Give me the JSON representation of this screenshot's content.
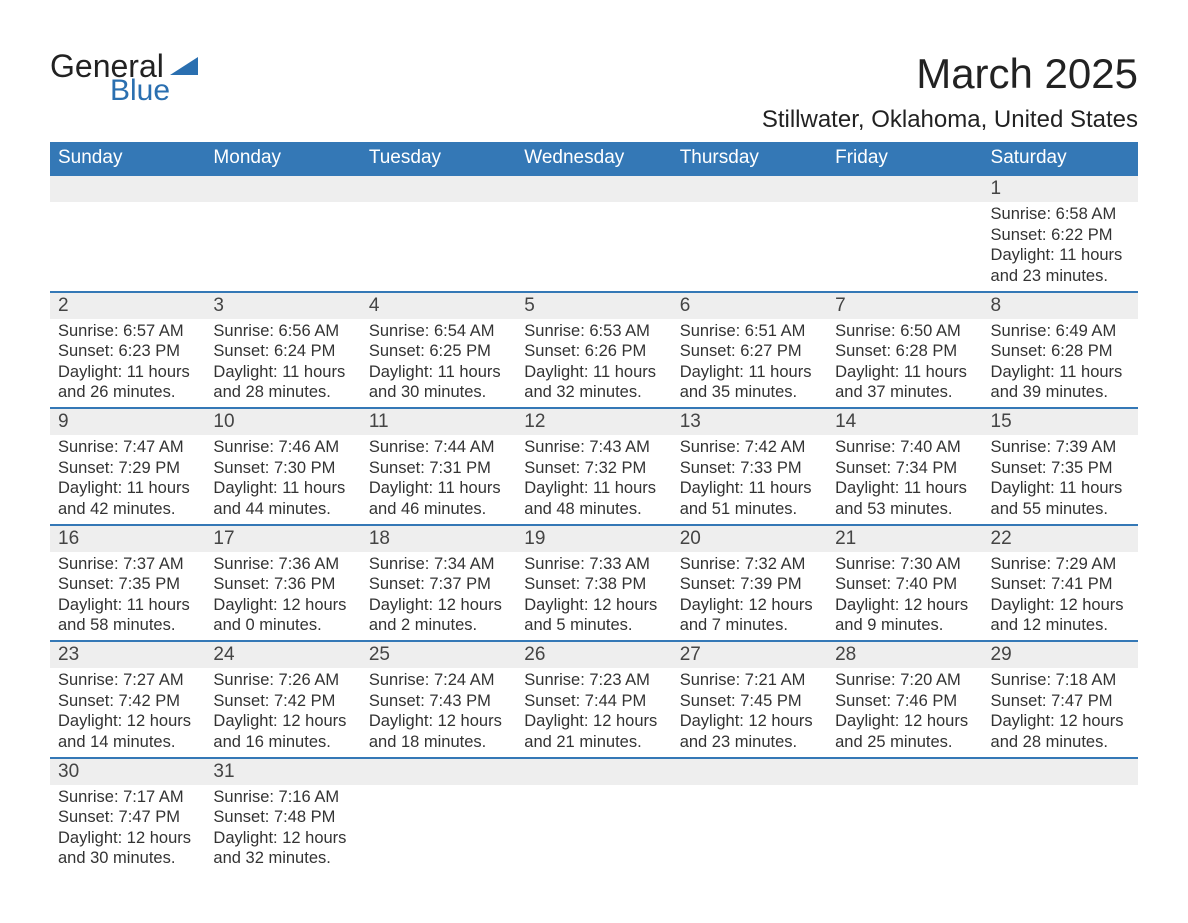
{
  "logo": {
    "line1": "General",
    "line2": "Blue"
  },
  "title": "March 2025",
  "location": "Stillwater, Oklahoma, United States",
  "colors": {
    "primary": "#3478b6",
    "row_shade": "#eeeeee",
    "text": "#333333",
    "background": "#ffffff"
  },
  "typography": {
    "title_fontsize": 42,
    "location_fontsize": 24,
    "dayhead_fontsize": 19,
    "body_fontsize": 16.5,
    "font_family": "Arial"
  },
  "day_headers": [
    "Sunday",
    "Monday",
    "Tuesday",
    "Wednesday",
    "Thursday",
    "Friday",
    "Saturday"
  ],
  "weeks": [
    [
      null,
      null,
      null,
      null,
      null,
      null,
      {
        "n": "1",
        "sr": "Sunrise: 6:58 AM",
        "ss": "Sunset: 6:22 PM",
        "d1": "Daylight: 11 hours",
        "d2": "and 23 minutes."
      }
    ],
    [
      {
        "n": "2",
        "sr": "Sunrise: 6:57 AM",
        "ss": "Sunset: 6:23 PM",
        "d1": "Daylight: 11 hours",
        "d2": "and 26 minutes."
      },
      {
        "n": "3",
        "sr": "Sunrise: 6:56 AM",
        "ss": "Sunset: 6:24 PM",
        "d1": "Daylight: 11 hours",
        "d2": "and 28 minutes."
      },
      {
        "n": "4",
        "sr": "Sunrise: 6:54 AM",
        "ss": "Sunset: 6:25 PM",
        "d1": "Daylight: 11 hours",
        "d2": "and 30 minutes."
      },
      {
        "n": "5",
        "sr": "Sunrise: 6:53 AM",
        "ss": "Sunset: 6:26 PM",
        "d1": "Daylight: 11 hours",
        "d2": "and 32 minutes."
      },
      {
        "n": "6",
        "sr": "Sunrise: 6:51 AM",
        "ss": "Sunset: 6:27 PM",
        "d1": "Daylight: 11 hours",
        "d2": "and 35 minutes."
      },
      {
        "n": "7",
        "sr": "Sunrise: 6:50 AM",
        "ss": "Sunset: 6:28 PM",
        "d1": "Daylight: 11 hours",
        "d2": "and 37 minutes."
      },
      {
        "n": "8",
        "sr": "Sunrise: 6:49 AM",
        "ss": "Sunset: 6:28 PM",
        "d1": "Daylight: 11 hours",
        "d2": "and 39 minutes."
      }
    ],
    [
      {
        "n": "9",
        "sr": "Sunrise: 7:47 AM",
        "ss": "Sunset: 7:29 PM",
        "d1": "Daylight: 11 hours",
        "d2": "and 42 minutes."
      },
      {
        "n": "10",
        "sr": "Sunrise: 7:46 AM",
        "ss": "Sunset: 7:30 PM",
        "d1": "Daylight: 11 hours",
        "d2": "and 44 minutes."
      },
      {
        "n": "11",
        "sr": "Sunrise: 7:44 AM",
        "ss": "Sunset: 7:31 PM",
        "d1": "Daylight: 11 hours",
        "d2": "and 46 minutes."
      },
      {
        "n": "12",
        "sr": "Sunrise: 7:43 AM",
        "ss": "Sunset: 7:32 PM",
        "d1": "Daylight: 11 hours",
        "d2": "and 48 minutes."
      },
      {
        "n": "13",
        "sr": "Sunrise: 7:42 AM",
        "ss": "Sunset: 7:33 PM",
        "d1": "Daylight: 11 hours",
        "d2": "and 51 minutes."
      },
      {
        "n": "14",
        "sr": "Sunrise: 7:40 AM",
        "ss": "Sunset: 7:34 PM",
        "d1": "Daylight: 11 hours",
        "d2": "and 53 minutes."
      },
      {
        "n": "15",
        "sr": "Sunrise: 7:39 AM",
        "ss": "Sunset: 7:35 PM",
        "d1": "Daylight: 11 hours",
        "d2": "and 55 minutes."
      }
    ],
    [
      {
        "n": "16",
        "sr": "Sunrise: 7:37 AM",
        "ss": "Sunset: 7:35 PM",
        "d1": "Daylight: 11 hours",
        "d2": "and 58 minutes."
      },
      {
        "n": "17",
        "sr": "Sunrise: 7:36 AM",
        "ss": "Sunset: 7:36 PM",
        "d1": "Daylight: 12 hours",
        "d2": "and 0 minutes."
      },
      {
        "n": "18",
        "sr": "Sunrise: 7:34 AM",
        "ss": "Sunset: 7:37 PM",
        "d1": "Daylight: 12 hours",
        "d2": "and 2 minutes."
      },
      {
        "n": "19",
        "sr": "Sunrise: 7:33 AM",
        "ss": "Sunset: 7:38 PM",
        "d1": "Daylight: 12 hours",
        "d2": "and 5 minutes."
      },
      {
        "n": "20",
        "sr": "Sunrise: 7:32 AM",
        "ss": "Sunset: 7:39 PM",
        "d1": "Daylight: 12 hours",
        "d2": "and 7 minutes."
      },
      {
        "n": "21",
        "sr": "Sunrise: 7:30 AM",
        "ss": "Sunset: 7:40 PM",
        "d1": "Daylight: 12 hours",
        "d2": "and 9 minutes."
      },
      {
        "n": "22",
        "sr": "Sunrise: 7:29 AM",
        "ss": "Sunset: 7:41 PM",
        "d1": "Daylight: 12 hours",
        "d2": "and 12 minutes."
      }
    ],
    [
      {
        "n": "23",
        "sr": "Sunrise: 7:27 AM",
        "ss": "Sunset: 7:42 PM",
        "d1": "Daylight: 12 hours",
        "d2": "and 14 minutes."
      },
      {
        "n": "24",
        "sr": "Sunrise: 7:26 AM",
        "ss": "Sunset: 7:42 PM",
        "d1": "Daylight: 12 hours",
        "d2": "and 16 minutes."
      },
      {
        "n": "25",
        "sr": "Sunrise: 7:24 AM",
        "ss": "Sunset: 7:43 PM",
        "d1": "Daylight: 12 hours",
        "d2": "and 18 minutes."
      },
      {
        "n": "26",
        "sr": "Sunrise: 7:23 AM",
        "ss": "Sunset: 7:44 PM",
        "d1": "Daylight: 12 hours",
        "d2": "and 21 minutes."
      },
      {
        "n": "27",
        "sr": "Sunrise: 7:21 AM",
        "ss": "Sunset: 7:45 PM",
        "d1": "Daylight: 12 hours",
        "d2": "and 23 minutes."
      },
      {
        "n": "28",
        "sr": "Sunrise: 7:20 AM",
        "ss": "Sunset: 7:46 PM",
        "d1": "Daylight: 12 hours",
        "d2": "and 25 minutes."
      },
      {
        "n": "29",
        "sr": "Sunrise: 7:18 AM",
        "ss": "Sunset: 7:47 PM",
        "d1": "Daylight: 12 hours",
        "d2": "and 28 minutes."
      }
    ],
    [
      {
        "n": "30",
        "sr": "Sunrise: 7:17 AM",
        "ss": "Sunset: 7:47 PM",
        "d1": "Daylight: 12 hours",
        "d2": "and 30 minutes."
      },
      {
        "n": "31",
        "sr": "Sunrise: 7:16 AM",
        "ss": "Sunset: 7:48 PM",
        "d1": "Daylight: 12 hours",
        "d2": "and 32 minutes."
      },
      null,
      null,
      null,
      null,
      null
    ]
  ]
}
